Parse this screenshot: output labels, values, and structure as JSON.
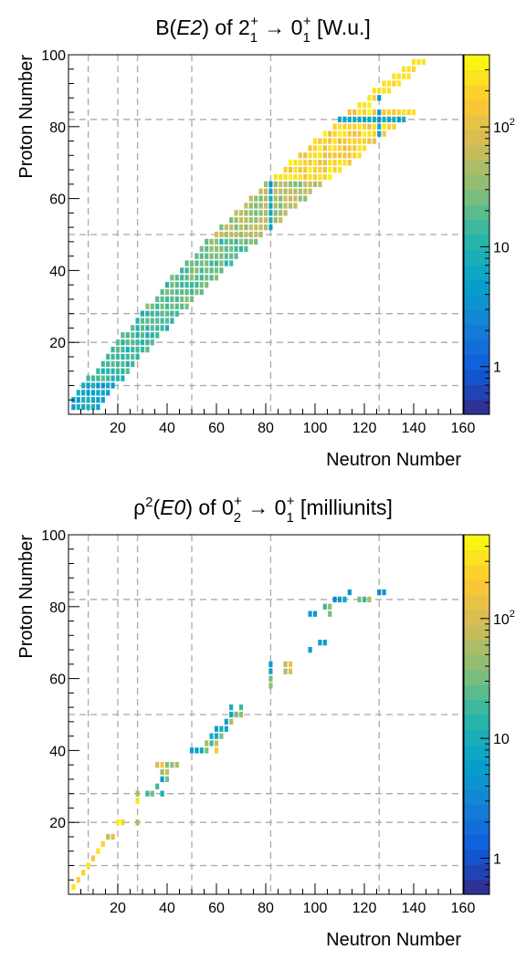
{
  "chart_data": [
    {
      "type": "heatmap",
      "title_parts": [
        "B(",
        "E2",
        ") of 2",
        "1",
        "+",
        " → 0",
        "1",
        "+",
        " [W.u.]"
      ],
      "xlabel": "Neutron Number",
      "ylabel": "Proton Number",
      "xlim": [
        0,
        160
      ],
      "ylim": [
        0,
        100
      ],
      "x_ticks": [
        20,
        40,
        60,
        80,
        100,
        120,
        140,
        160
      ],
      "y_ticks": [
        20,
        40,
        60,
        80,
        100
      ],
      "grid_magic_numbers": [
        8,
        20,
        28,
        50,
        82,
        126
      ],
      "z_scale": "log",
      "z_range": [
        0.4,
        400
      ],
      "colorbar_ticks": [
        {
          "value": 1,
          "label": "1"
        },
        {
          "value": 10,
          "label": "10"
        },
        {
          "value": 100,
          "label": "10",
          "sup": "2"
        }
      ],
      "colors": [
        "#352a87",
        "#0f5cdd",
        "#1481d6",
        "#06a4ca",
        "#2eb7a4",
        "#87bf77",
        "#d1bb59",
        "#fec832",
        "#f9fb0e"
      ],
      "band": {
        "description": "even-even nuclei along valley of stability",
        "z_min": 2,
        "z_max": 98,
        "z_step": 2
      }
    },
    {
      "type": "heatmap",
      "title_parts": [
        "ρ",
        "2",
        "(",
        "E0",
        ") of 0",
        "2",
        "+",
        " → 0",
        "1",
        "+",
        " [milliunits]"
      ],
      "xlabel": "Neutron Number",
      "ylabel": "Proton Number",
      "xlim": [
        0,
        160
      ],
      "ylim": [
        0,
        100
      ],
      "x_ticks": [
        20,
        40,
        60,
        80,
        100,
        120,
        140,
        160
      ],
      "y_ticks": [
        20,
        40,
        60,
        80,
        100
      ],
      "grid_magic_numbers": [
        8,
        20,
        28,
        50,
        82,
        126
      ],
      "z_scale": "log",
      "z_range": [
        0.5,
        500
      ],
      "colorbar_ticks": [
        {
          "value": 1,
          "label": "1"
        },
        {
          "value": 10,
          "label": "10"
        },
        {
          "value": 100,
          "label": "10",
          "sup": "2"
        }
      ],
      "colors": [
        "#352a87",
        "#0f5cdd",
        "#1481d6",
        "#06a4ca",
        "#2eb7a4",
        "#87bf77",
        "#d1bb59",
        "#fec832",
        "#f9fb0e"
      ],
      "points": [
        [
          2,
          2,
          300
        ],
        [
          4,
          4,
          250
        ],
        [
          6,
          6,
          280
        ],
        [
          8,
          8,
          300
        ],
        [
          10,
          10,
          200
        ],
        [
          12,
          12,
          300
        ],
        [
          14,
          14,
          250
        ],
        [
          16,
          16,
          80
        ],
        [
          18,
          16,
          150
        ],
        [
          20,
          20,
          400
        ],
        [
          22,
          20,
          250
        ],
        [
          28,
          20,
          60
        ],
        [
          28,
          26,
          300
        ],
        [
          28,
          28,
          60
        ],
        [
          32,
          28,
          20
        ],
        [
          34,
          28,
          30
        ],
        [
          36,
          30,
          20
        ],
        [
          38,
          28,
          10
        ],
        [
          38,
          32,
          5
        ],
        [
          40,
          32,
          30
        ],
        [
          36,
          36,
          100
        ],
        [
          38,
          36,
          200
        ],
        [
          40,
          34,
          80
        ],
        [
          38,
          34,
          40
        ],
        [
          42,
          36,
          40
        ],
        [
          44,
          36,
          60
        ],
        [
          40,
          36,
          30
        ],
        [
          50,
          40,
          5
        ],
        [
          52,
          40,
          5
        ],
        [
          54,
          40,
          8
        ],
        [
          56,
          40,
          30
        ],
        [
          56,
          42,
          50
        ],
        [
          58,
          42,
          20
        ],
        [
          60,
          42,
          80
        ],
        [
          60,
          40,
          200
        ],
        [
          58,
          44,
          10
        ],
        [
          60,
          44,
          8
        ],
        [
          60,
          46,
          6
        ],
        [
          62,
          46,
          10
        ],
        [
          62,
          44,
          30
        ],
        [
          64,
          46,
          8
        ],
        [
          64,
          48,
          6
        ],
        [
          66,
          48,
          60
        ],
        [
          68,
          50,
          30
        ],
        [
          66,
          50,
          8
        ],
        [
          70,
          50,
          40
        ],
        [
          66,
          52,
          10
        ],
        [
          70,
          52,
          20
        ],
        [
          82,
          58,
          40
        ],
        [
          82,
          60,
          30
        ],
        [
          82,
          62,
          8
        ],
        [
          82,
          64,
          5
        ],
        [
          88,
          62,
          60
        ],
        [
          90,
          62,
          100
        ],
        [
          90,
          64,
          150
        ],
        [
          88,
          64,
          80
        ],
        [
          98,
          68,
          5
        ],
        [
          102,
          70,
          5
        ],
        [
          104,
          70,
          6
        ],
        [
          98,
          78,
          6
        ],
        [
          100,
          78,
          5
        ],
        [
          104,
          80,
          20
        ],
        [
          106,
          80,
          40
        ],
        [
          108,
          82,
          3
        ],
        [
          110,
          82,
          6
        ],
        [
          112,
          82,
          8
        ],
        [
          114,
          84,
          4
        ],
        [
          106,
          78,
          30
        ],
        [
          118,
          82,
          30
        ],
        [
          120,
          82,
          20
        ],
        [
          122,
          82,
          60
        ],
        [
          126,
          84,
          3
        ],
        [
          128,
          84,
          4
        ]
      ]
    }
  ]
}
